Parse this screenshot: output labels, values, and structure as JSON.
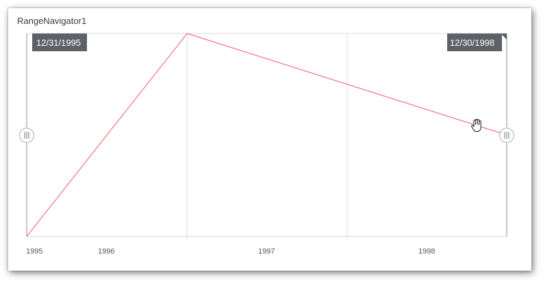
{
  "window": {
    "title": "RangeNavigator1"
  },
  "navigator": {
    "start_label": "12/31/1995",
    "end_label": "12/30/1998",
    "handle_glyph": "|||",
    "tooltip_color": "#5e6166",
    "series_color": "#f0727d",
    "cursor_icon": "hand-cursor-icon"
  },
  "chart_data": {
    "type": "line",
    "title": "",
    "xlabel": "",
    "ylabel": "",
    "x_tick_labels": [
      "1995",
      "1996",
      "1997",
      "1998"
    ],
    "x_range": [
      "1995-12-31",
      "1998-12-30"
    ],
    "series": [
      {
        "x": [
          "1995-12-31",
          "1996-12-31",
          "1998-12-30"
        ],
        "y": [
          0,
          100,
          50
        ]
      }
    ],
    "grid": true
  }
}
